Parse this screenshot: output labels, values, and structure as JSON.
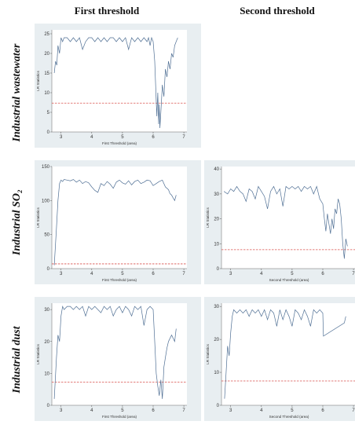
{
  "columns": [
    "First threshold",
    "Second threshold"
  ],
  "rows": [
    "Industrial wastewater",
    "Industrial SO₂",
    "Industrial dust"
  ],
  "chart_data": [
    {
      "type": "line",
      "panel": "wastewater-first",
      "xlabel": "First Threshold (area)",
      "ylabel": "LR Statistics",
      "xlim": [
        2.7,
        7.1
      ],
      "ylim": [
        0,
        26
      ],
      "xticks": [
        3,
        4,
        5,
        6,
        7
      ],
      "yticks": [
        0,
        5,
        10,
        15,
        20,
        25
      ],
      "critical_value": 7.35,
      "critical_color": "#d9534f",
      "line_color": "#4f6f94",
      "x": [
        2.78,
        2.82,
        2.86,
        2.9,
        2.95,
        3.0,
        3.05,
        3.1,
        3.2,
        3.3,
        3.4,
        3.5,
        3.6,
        3.7,
        3.8,
        3.9,
        4.0,
        4.1,
        4.2,
        4.3,
        4.4,
        4.5,
        4.6,
        4.7,
        4.8,
        4.9,
        5.0,
        5.1,
        5.2,
        5.3,
        5.4,
        5.5,
        5.6,
        5.7,
        5.8,
        5.85,
        5.9,
        5.95,
        6.0,
        6.05,
        6.1,
        6.12,
        6.15,
        6.18,
        6.2,
        6.22,
        6.25,
        6.3,
        6.35,
        6.4,
        6.45,
        6.5,
        6.55,
        6.6,
        6.65,
        6.7,
        6.75,
        6.8
      ],
      "y": [
        15,
        18,
        17,
        22,
        20,
        24,
        23,
        24,
        24,
        23,
        24,
        23,
        24,
        21,
        23,
        24,
        24,
        23,
        24,
        23,
        24,
        23,
        24,
        24,
        23,
        24,
        23,
        24,
        21,
        24,
        23,
        24,
        23,
        24,
        23,
        24,
        22,
        24,
        23,
        18,
        8,
        4,
        10,
        2,
        7,
        1,
        5,
        12,
        9,
        16,
        14,
        18,
        16,
        20,
        19,
        22,
        23,
        24
      ],
      "series_name": ""
    },
    {
      "type": "line",
      "panel": "so2-first",
      "xlabel": "First Threshold (area)",
      "ylabel": "LR Statistics",
      "xlim": [
        2.7,
        7.1
      ],
      "ylim": [
        0,
        150
      ],
      "xticks": [
        3,
        4,
        5,
        6,
        7
      ],
      "yticks": [
        0,
        50,
        100,
        150
      ],
      "critical_value": 7,
      "critical_color": "#d9534f",
      "line_color": "#4f6f94",
      "x": [
        2.78,
        2.85,
        2.9,
        2.95,
        3.0,
        3.05,
        3.1,
        3.2,
        3.3,
        3.4,
        3.5,
        3.6,
        3.7,
        3.8,
        3.9,
        4.0,
        4.1,
        4.2,
        4.3,
        4.4,
        4.5,
        4.6,
        4.7,
        4.8,
        4.9,
        5.0,
        5.1,
        5.2,
        5.3,
        5.4,
        5.5,
        5.6,
        5.7,
        5.8,
        5.9,
        6.0,
        6.1,
        6.2,
        6.3,
        6.4,
        6.5,
        6.55,
        6.6,
        6.65,
        6.7,
        6.75
      ],
      "y": [
        5,
        60,
        100,
        125,
        130,
        128,
        131,
        130,
        129,
        131,
        127,
        130,
        125,
        128,
        126,
        120,
        115,
        112,
        125,
        122,
        128,
        124,
        118,
        127,
        130,
        126,
        124,
        129,
        123,
        128,
        130,
        125,
        127,
        130,
        129,
        122,
        125,
        128,
        130,
        120,
        116,
        110,
        108,
        104,
        100,
        108
      ],
      "series_name": ""
    },
    {
      "type": "line",
      "panel": "so2-second",
      "xlabel": "Second Threshold (area)",
      "ylabel": "LR Statistics",
      "xlim": [
        2.7,
        7.1
      ],
      "ylim": [
        0,
        41
      ],
      "xticks": [
        3,
        4,
        5,
        6,
        7
      ],
      "yticks": [
        0,
        10,
        20,
        30,
        40
      ],
      "critical_value": 7.6,
      "critical_color": "#d9534f",
      "line_color": "#4f6f94",
      "x": [
        2.78,
        2.9,
        3.0,
        3.1,
        3.2,
        3.3,
        3.4,
        3.5,
        3.6,
        3.7,
        3.8,
        3.9,
        4.0,
        4.1,
        4.2,
        4.3,
        4.4,
        4.5,
        4.6,
        4.7,
        4.8,
        4.9,
        5.0,
        5.1,
        5.2,
        5.3,
        5.4,
        5.5,
        5.6,
        5.7,
        5.8,
        5.9,
        6.0,
        6.05,
        6.1,
        6.15,
        6.2,
        6.25,
        6.3,
        6.35,
        6.4,
        6.45,
        6.5,
        6.55,
        6.6,
        6.65,
        6.7,
        6.75,
        6.8
      ],
      "y": [
        31,
        30,
        32,
        31,
        33,
        31,
        30,
        27,
        32,
        31,
        28,
        33,
        31,
        29,
        24,
        31,
        33,
        30,
        32,
        25,
        33,
        32,
        33,
        32,
        33,
        31,
        33,
        32,
        33,
        30,
        33,
        28,
        26,
        20,
        15,
        22,
        18,
        14,
        20,
        16,
        24,
        22,
        28,
        26,
        20,
        10,
        4,
        12,
        9
      ],
      "series_name": ""
    },
    {
      "type": "line",
      "panel": "dust-first",
      "xlabel": "First Threshold (area)",
      "ylabel": "LR Statistics",
      "xlim": [
        2.7,
        7.1
      ],
      "ylim": [
        0,
        32
      ],
      "xticks": [
        3,
        4,
        5,
        6,
        7
      ],
      "yticks": [
        0,
        10,
        20,
        30
      ],
      "critical_value": 7.3,
      "critical_color": "#d9534f",
      "line_color": "#4f6f94",
      "x": [
        2.78,
        2.85,
        2.9,
        2.95,
        3.0,
        3.05,
        3.1,
        3.2,
        3.3,
        3.4,
        3.5,
        3.6,
        3.7,
        3.8,
        3.9,
        4.0,
        4.1,
        4.2,
        4.3,
        4.4,
        4.5,
        4.6,
        4.7,
        4.8,
        4.9,
        5.0,
        5.1,
        5.2,
        5.3,
        5.4,
        5.5,
        5.6,
        5.7,
        5.8,
        5.9,
        6.0,
        6.05,
        6.1,
        6.15,
        6.2,
        6.25,
        6.3,
        6.35,
        6.4,
        6.45,
        6.5,
        6.6,
        6.7,
        6.75
      ],
      "y": [
        2,
        15,
        22,
        20,
        28,
        31,
        30,
        31,
        31,
        30,
        31,
        30,
        31,
        28,
        31,
        30,
        31,
        30,
        29,
        31,
        30,
        31,
        28,
        30,
        31,
        29,
        31,
        30,
        28,
        31,
        30,
        31,
        25,
        30,
        31,
        30,
        20,
        10,
        6,
        3,
        8,
        2,
        12,
        15,
        18,
        20,
        22,
        20,
        24
      ],
      "series_name": ""
    },
    {
      "type": "line",
      "panel": "dust-second",
      "xlabel": "Second Threshold (area)",
      "ylabel": "LR Statistics",
      "xlim": [
        2.7,
        7.1
      ],
      "ylim": [
        0,
        31
      ],
      "xticks": [
        3,
        4,
        5,
        6,
        7
      ],
      "yticks": [
        0,
        10,
        20,
        30
      ],
      "critical_value": 7.4,
      "critical_color": "#d9534f",
      "line_color": "#4f6f94",
      "x": [
        2.8,
        2.85,
        2.9,
        2.95,
        3.0,
        3.05,
        3.1,
        3.2,
        3.3,
        3.4,
        3.5,
        3.6,
        3.7,
        3.8,
        3.9,
        4.0,
        4.1,
        4.2,
        4.3,
        4.4,
        4.5,
        4.6,
        4.7,
        4.8,
        4.9,
        5.0,
        5.1,
        5.2,
        5.3,
        5.4,
        5.5,
        5.6,
        5.7,
        5.8,
        5.9,
        6.0,
        6.02,
        6.7,
        6.75
      ],
      "y": [
        2,
        10,
        18,
        15,
        22,
        27,
        29,
        28,
        29,
        28,
        29,
        27,
        29,
        28,
        29,
        27,
        29,
        26,
        29,
        28,
        24,
        29,
        26,
        29,
        27,
        24,
        29,
        28,
        26,
        29,
        27,
        24,
        29,
        28,
        29,
        28,
        21,
        25,
        27
      ],
      "series_name": ""
    }
  ]
}
